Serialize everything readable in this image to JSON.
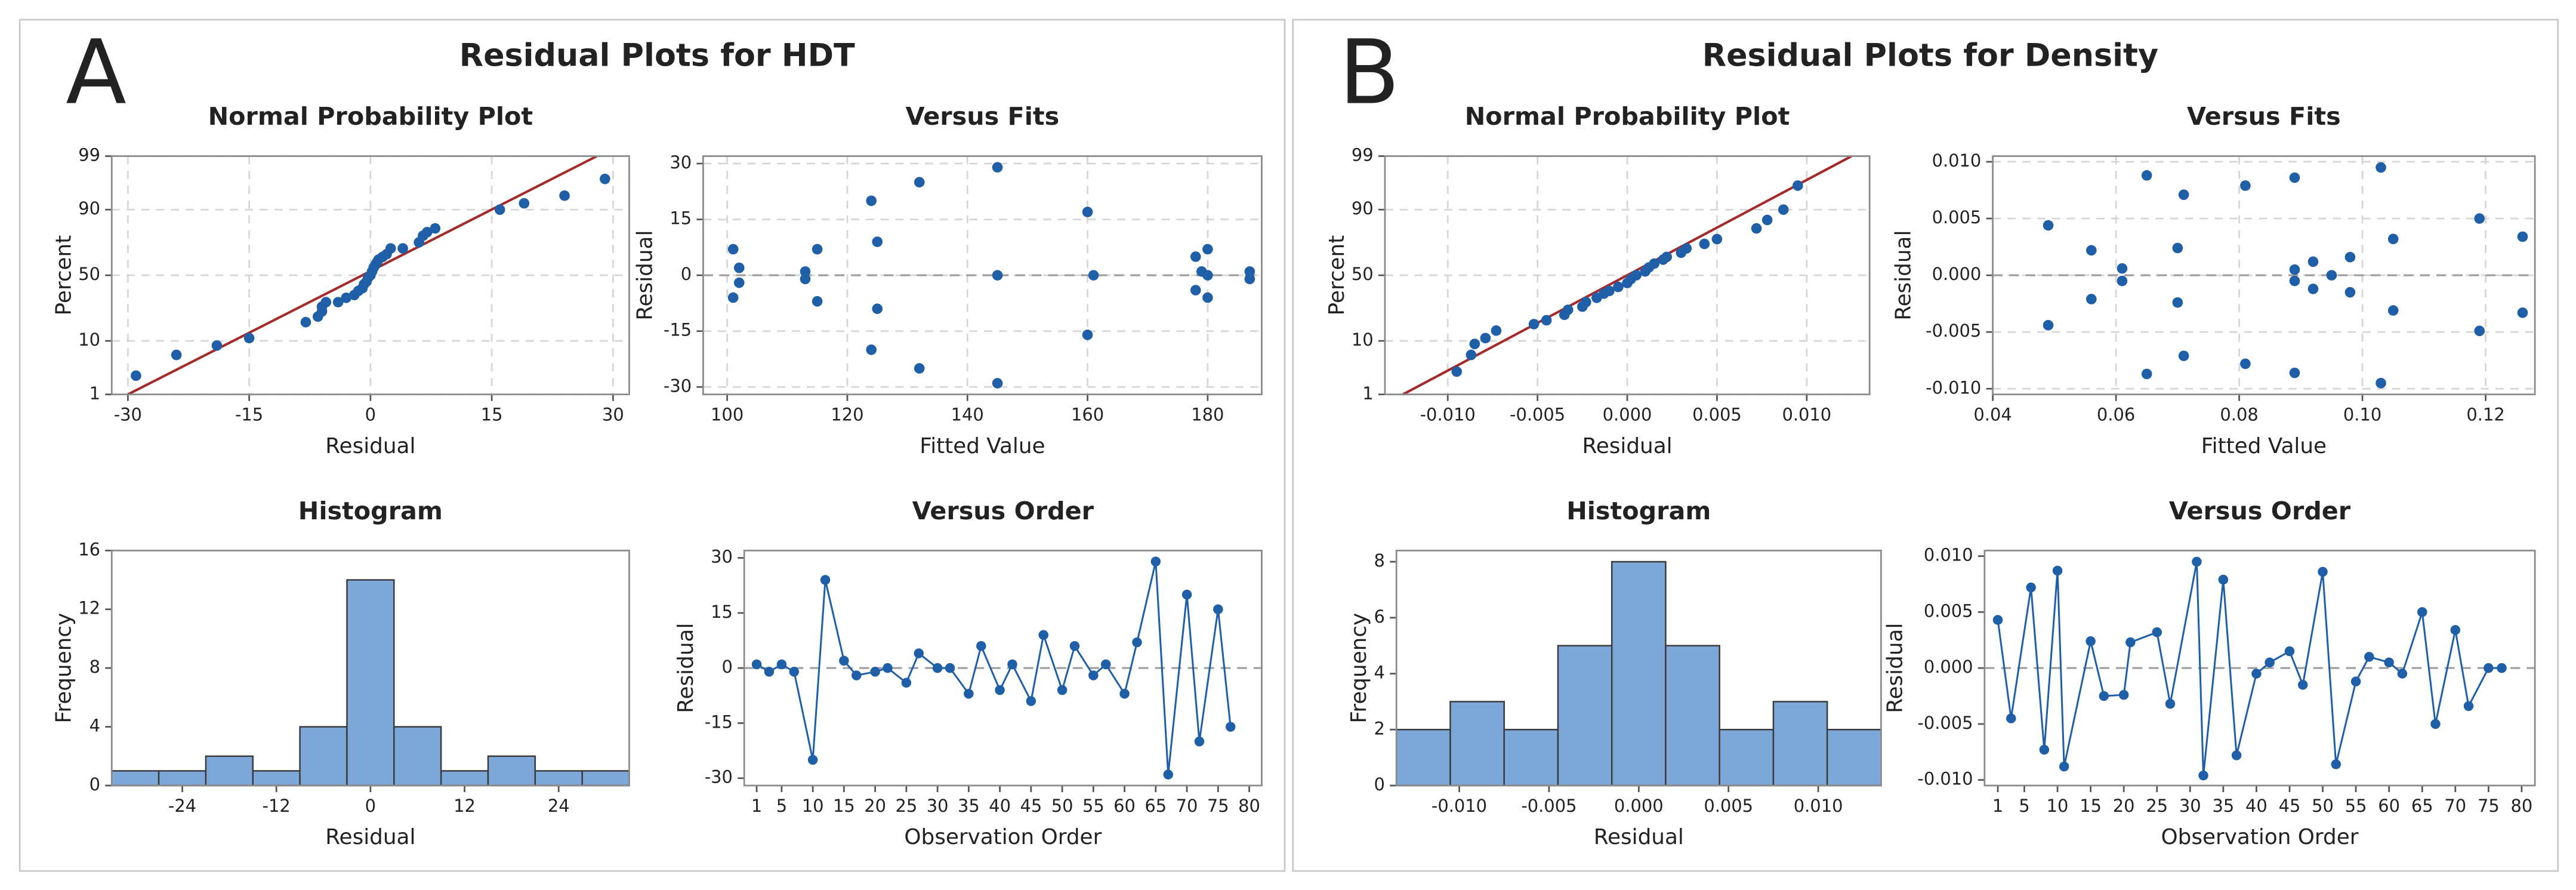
{
  "panels": [
    {
      "label": "A",
      "title": "Residual Plots for HDT"
    },
    {
      "label": "B",
      "title": "Residual Plots for Density"
    }
  ],
  "chart_data": [
    {
      "type": "scatter",
      "yscale": "normal-probability",
      "title": "Normal Probability Plot",
      "xlabel": "Residual",
      "ylabel": "Percent",
      "color": "#1f5fa8",
      "grid": true,
      "x": [
        -29,
        -24,
        -19,
        -15,
        -8,
        -6.5,
        -6,
        -6,
        -5.5,
        -4,
        -3,
        -2,
        -1.5,
        -1,
        -0.8,
        -0.5,
        -0.3,
        0,
        0.2,
        0.4,
        0.6,
        0.8,
        1,
        1.5,
        2,
        2.5,
        4,
        6,
        6.5,
        7,
        8,
        16,
        19,
        24,
        29
      ],
      "values": [
        2.5,
        6,
        8.5,
        11,
        18,
        21,
        24,
        27,
        30,
        30,
        33,
        35,
        38,
        40,
        43,
        45,
        48,
        50,
        53,
        56,
        58,
        60,
        62,
        64,
        66,
        70,
        70,
        74,
        78,
        80,
        82,
        90,
        92,
        94,
        97
      ],
      "fit_line": {
        "color": "#a52a2a",
        "x": [
          -30,
          28
        ],
        "y": [
          1,
          99
        ]
      },
      "xlim": [
        -32,
        32
      ],
      "xticks": [
        -30,
        -15,
        0,
        15,
        30
      ],
      "ylim": [
        1,
        99
      ],
      "yticks": [
        1,
        10,
        50,
        90,
        99
      ]
    },
    {
      "type": "scatter",
      "title": "Versus Fits",
      "xlabel": "Fitted Value",
      "ylabel": "Residual",
      "color": "#1f5fa8",
      "grid": true,
      "hline": 0,
      "x": [
        101,
        101,
        102,
        102,
        113,
        113,
        115,
        115,
        124,
        124,
        125,
        125,
        132,
        132,
        145,
        145,
        145,
        160,
        160,
        161,
        178,
        178,
        179,
        180,
        180,
        180,
        187,
        187
      ],
      "values": [
        7,
        -6,
        2,
        -2,
        1,
        -1,
        7,
        -7,
        20,
        -20,
        9,
        -9,
        25,
        -25,
        29,
        -29,
        0,
        17,
        -16,
        0,
        5,
        -4,
        1,
        7,
        -6,
        0,
        1,
        -1
      ],
      "xlim": [
        96,
        189
      ],
      "xticks": [
        100,
        120,
        140,
        160,
        180
      ],
      "ylim": [
        -32,
        32
      ],
      "yticks": [
        -30,
        -15,
        0,
        15,
        30
      ]
    },
    {
      "type": "histogram",
      "title": "Histogram",
      "xlabel": "Residual",
      "ylabel": "Frequency",
      "color": "#7da7d9",
      "bins": [
        -33,
        -27,
        -21,
        -15,
        -9,
        -3,
        3,
        9,
        15,
        21,
        27,
        33
      ],
      "values": [
        1,
        1,
        2,
        1,
        4,
        14,
        4,
        1,
        2,
        1,
        1
      ],
      "xlim": [
        -33,
        33
      ],
      "xticks": [
        -24,
        -12,
        0,
        12,
        24
      ],
      "ylim": [
        0,
        16
      ],
      "yticks": [
        0,
        4,
        8,
        12,
        16
      ]
    },
    {
      "type": "line",
      "title": "Versus Order",
      "xlabel": "Observation Order",
      "ylabel": "Residual",
      "color": "#1f5fa8",
      "hline": 0,
      "x": [
        1,
        3,
        5,
        7,
        10,
        12,
        15,
        17,
        20,
        22,
        25,
        27,
        30,
        32,
        35,
        37,
        40,
        42,
        45,
        47,
        50,
        52,
        55,
        57,
        60,
        62,
        65,
        67,
        70,
        72,
        75,
        77
      ],
      "values": [
        1,
        -1,
        1,
        -1,
        -25,
        24,
        2,
        -2,
        -1,
        0,
        -4,
        4,
        0,
        0,
        -7,
        6,
        -6,
        1,
        -9,
        9,
        -6,
        6,
        -2,
        1,
        -7,
        7,
        29,
        -29,
        20,
        -20,
        16,
        -16
      ],
      "xlim": [
        -1,
        82
      ],
      "xticks": [
        1,
        5,
        10,
        15,
        20,
        25,
        30,
        35,
        40,
        45,
        50,
        55,
        60,
        65,
        70,
        75,
        80
      ],
      "ylim": [
        -32,
        32
      ],
      "yticks": [
        -30,
        -15,
        0,
        15,
        30
      ]
    },
    {
      "type": "scatter",
      "yscale": "normal-probability",
      "title": "Normal Probability Plot",
      "xlabel": "Residual",
      "ylabel": "Percent",
      "color": "#1f5fa8",
      "grid": true,
      "x": [
        -0.0095,
        -0.0087,
        -0.0085,
        -0.0079,
        -0.0073,
        -0.0052,
        -0.0045,
        -0.0035,
        -0.0033,
        -0.0025,
        -0.0023,
        -0.0017,
        -0.0013,
        -0.001,
        -0.0005,
        0,
        0.0002,
        0.0005,
        0.001,
        0.0012,
        0.0015,
        0.002,
        0.0022,
        0.003,
        0.0033,
        0.0043,
        0.005,
        0.0072,
        0.0078,
        0.0087,
        0.0095
      ],
      "values": [
        3,
        6,
        9,
        11,
        14,
        17,
        19,
        22,
        25,
        27,
        30,
        33,
        36,
        38,
        41,
        44,
        47,
        50,
        53,
        56,
        59,
        62,
        64,
        67,
        70,
        73,
        76,
        82,
        86,
        90,
        96
      ],
      "fit_line": {
        "color": "#a52a2a",
        "x": [
          -0.0125,
          0.0125
        ],
        "y": [
          1,
          99
        ]
      },
      "xlim": [
        -0.0135,
        0.0135
      ],
      "xticks": [
        {
          "value": -0.01,
          "label": "-0.010"
        },
        -0.005,
        {
          "value": 0,
          "label": "0.000"
        },
        0.005,
        {
          "value": 0.01,
          "label": "0.010"
        }
      ],
      "ylim": [
        1,
        99
      ],
      "yticks": [
        1,
        10,
        50,
        90,
        99
      ]
    },
    {
      "type": "scatter",
      "title": "Versus Fits",
      "xlabel": "Fitted Value",
      "ylabel": "Residual",
      "color": "#1f5fa8",
      "grid": true,
      "hline": 0,
      "x": [
        0.049,
        0.049,
        0.056,
        0.056,
        0.061,
        0.061,
        0.065,
        0.065,
        0.07,
        0.07,
        0.071,
        0.071,
        0.081,
        0.081,
        0.089,
        0.089,
        0.089,
        0.089,
        0.092,
        0.092,
        0.095,
        0.098,
        0.098,
        0.103,
        0.103,
        0.105,
        0.105,
        0.119,
        0.119,
        0.126,
        0.126
      ],
      "values": [
        0.0044,
        -0.0044,
        0.0022,
        -0.0021,
        0.0006,
        -0.0005,
        0.0088,
        -0.0087,
        0.0024,
        -0.0024,
        0.0071,
        -0.0071,
        0.0079,
        -0.0078,
        0.0086,
        -0.0086,
        0.0005,
        -0.0005,
        0.0012,
        -0.0012,
        0,
        0.0016,
        -0.0015,
        0.0095,
        -0.0095,
        0.0032,
        -0.0031,
        0.005,
        -0.0049,
        0.0034,
        -0.0033
      ],
      "xlim": [
        0.04,
        0.128
      ],
      "xticks": [
        0.04,
        0.06,
        0.08,
        {
          "value": 0.1,
          "label": "0.10"
        },
        0.12
      ],
      "ylim": [
        -0.0105,
        0.0105
      ],
      "yticks": [
        {
          "value": -0.01,
          "label": "-0.010"
        },
        -0.005,
        {
          "value": 0,
          "label": "0.000"
        },
        0.005,
        {
          "value": 0.01,
          "label": "0.010"
        }
      ]
    },
    {
      "type": "histogram",
      "title": "Histogram",
      "xlabel": "Residual",
      "ylabel": "Frequency",
      "color": "#7da7d9",
      "bins": [
        -0.0135,
        -0.0105,
        -0.0075,
        -0.0045,
        -0.0015,
        0.0015,
        0.0045,
        0.0075,
        0.0105,
        0.0135
      ],
      "values": [
        2,
        3,
        2,
        5,
        8,
        5,
        2,
        3,
        2
      ],
      "xlim": [
        -0.0135,
        0.0135
      ],
      "xticks": [
        {
          "value": -0.01,
          "label": "-0.010"
        },
        -0.005,
        {
          "value": 0,
          "label": "0.000"
        },
        0.005,
        {
          "value": 0.01,
          "label": "0.010"
        }
      ],
      "ylim": [
        0,
        8.4
      ],
      "yticks": [
        0,
        2,
        4,
        6,
        8
      ]
    },
    {
      "type": "line",
      "title": "Versus Order",
      "xlabel": "Observation Order",
      "ylabel": "Residual",
      "color": "#1f5fa8",
      "hline": 0,
      "x": [
        1,
        3,
        6,
        8,
        10,
        11,
        15,
        17,
        20,
        21,
        25,
        27,
        31,
        32,
        35,
        37,
        40,
        42,
        45,
        47,
        50,
        52,
        55,
        57,
        60,
        62,
        65,
        67,
        70,
        72,
        75,
        77
      ],
      "values": [
        0.0043,
        -0.0045,
        0.0072,
        -0.0073,
        0.0087,
        -0.0088,
        0.0024,
        -0.0025,
        -0.0024,
        0.0023,
        0.0032,
        -0.0032,
        0.0095,
        -0.0096,
        0.0079,
        -0.0078,
        -0.0005,
        0.0005,
        0.0015,
        -0.0015,
        0.0086,
        -0.0086,
        -0.0012,
        0.001,
        0.0005,
        -0.0005,
        0.005,
        -0.005,
        0.0034,
        -0.0034,
        0,
        0
      ],
      "xlim": [
        -1,
        82
      ],
      "xticks": [
        1,
        5,
        10,
        15,
        20,
        25,
        30,
        35,
        40,
        45,
        50,
        55,
        60,
        65,
        70,
        75,
        80
      ],
      "ylim": [
        -0.0105,
        0.0105
      ],
      "yticks": [
        {
          "value": -0.01,
          "label": "-0.010"
        },
        -0.005,
        {
          "value": 0,
          "label": "0.000"
        },
        0.005,
        {
          "value": 0.01,
          "label": "0.010"
        }
      ]
    }
  ]
}
